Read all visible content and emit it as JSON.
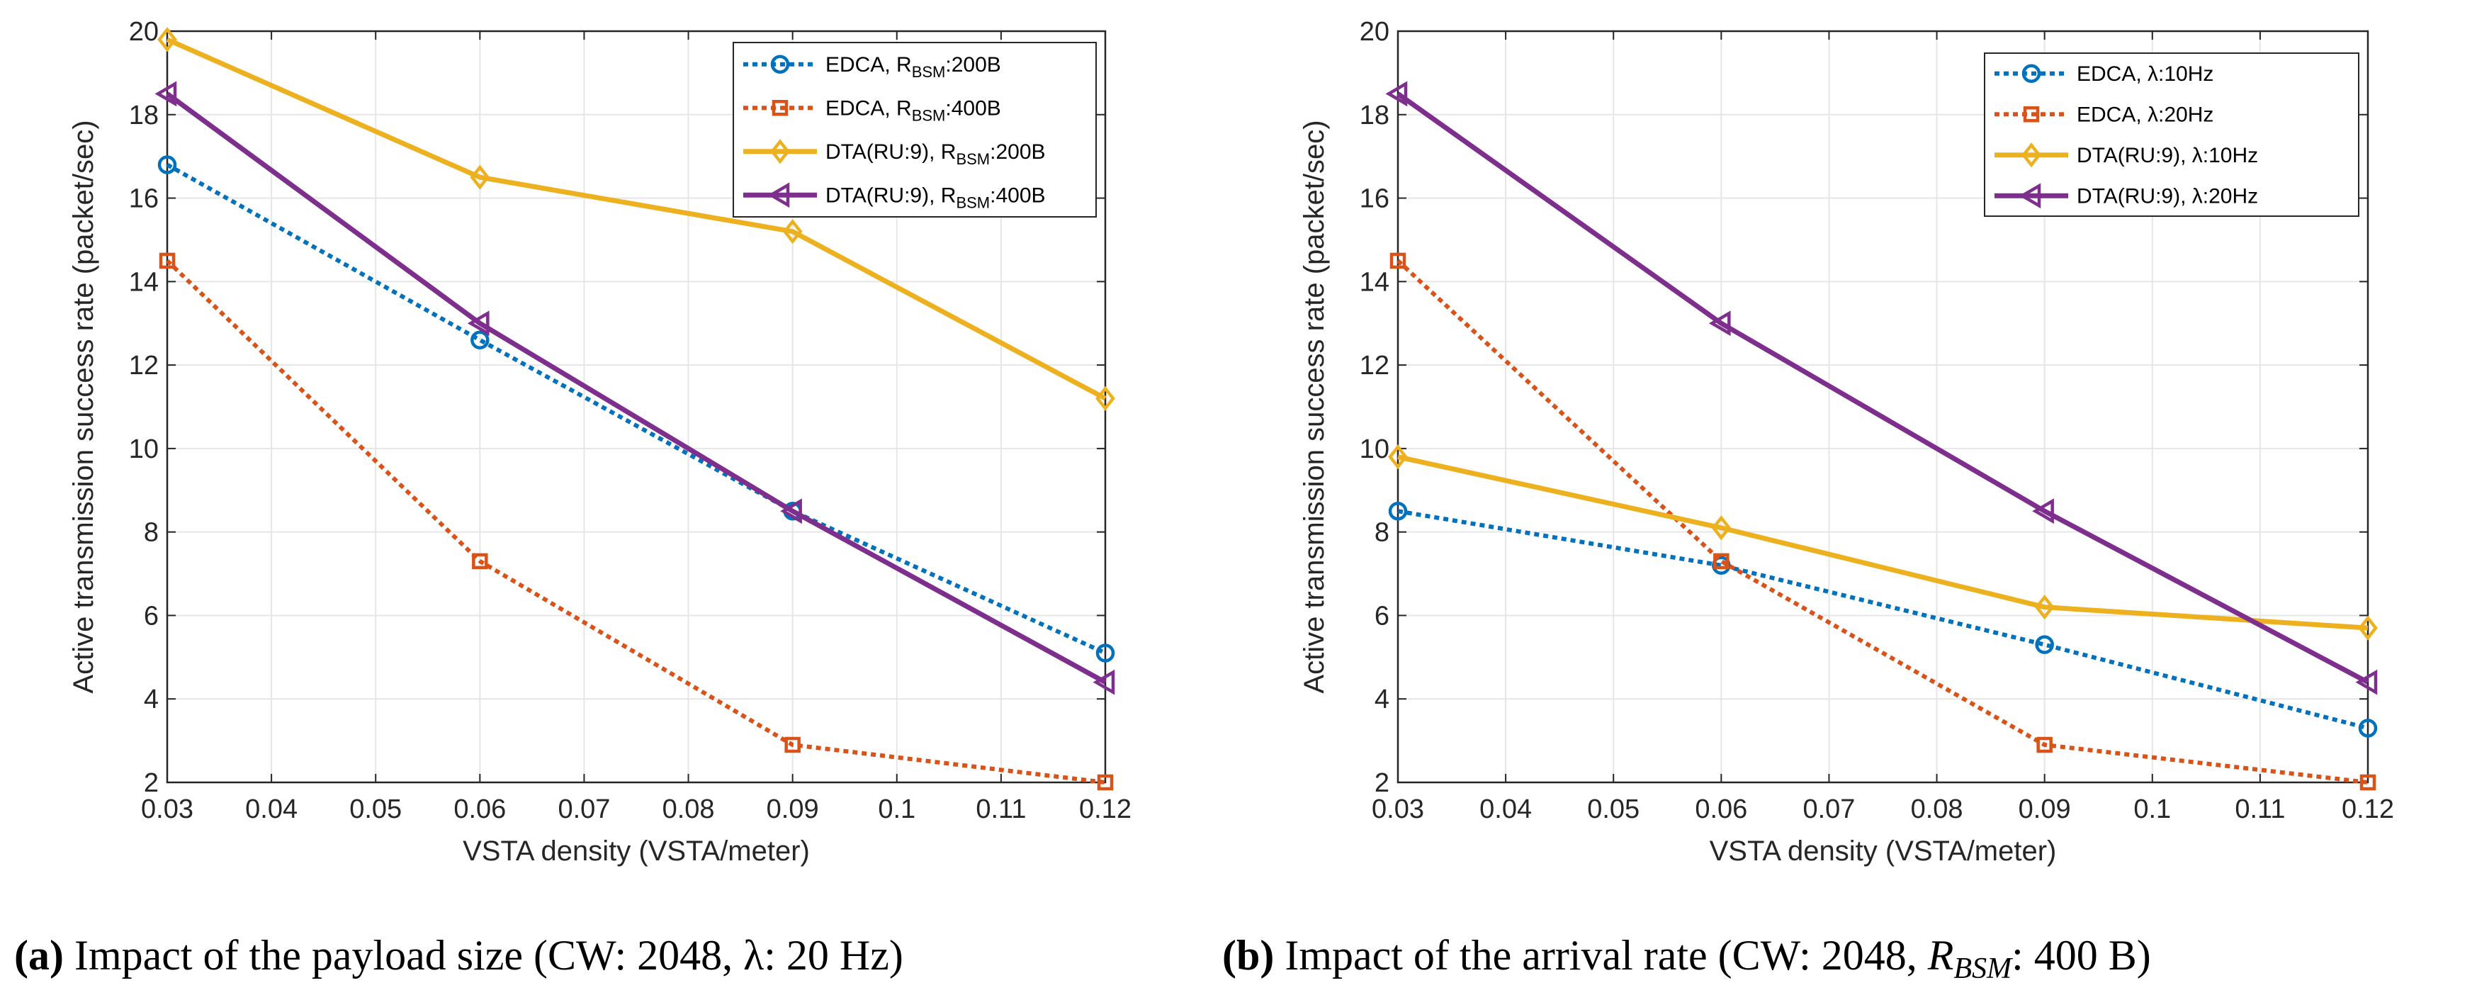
{
  "colors": {
    "edca_a": "#0072BD",
    "edca_b": "#D95319",
    "dta_a": "#EDB120",
    "dta_b": "#7E2F8E",
    "grid": "#e6e6e6",
    "axis": "#262626"
  },
  "chart_data": [
    {
      "type": "line",
      "xlabel": "VSTA density (VSTA/meter)",
      "ylabel": "Active transmission success rate (packet/sec)",
      "xlim": [
        0.03,
        0.12
      ],
      "ylim": [
        2,
        20
      ],
      "xticks": [
        "0.03",
        "0.04",
        "0.05",
        "0.06",
        "0.07",
        "0.08",
        "0.09",
        "0.1",
        "0.11",
        "0.12"
      ],
      "yticks": [
        "2",
        "4",
        "6",
        "8",
        "10",
        "12",
        "14",
        "16",
        "18",
        "20"
      ],
      "grid": true,
      "legend_position": "top-right",
      "x": [
        0.03,
        0.06,
        0.09,
        0.12
      ],
      "series": [
        {
          "name": "EDCA, R_BSM:200B",
          "legend": {
            "pre": "EDCA, R",
            "sub": "BSM",
            "post": ":200B"
          },
          "marker": "circle",
          "dashed": true,
          "color": "#0072BD",
          "values": [
            16.8,
            12.6,
            8.5,
            5.1
          ]
        },
        {
          "name": "EDCA, R_BSM:400B",
          "legend": {
            "pre": "EDCA, R",
            "sub": "BSM",
            "post": ":400B"
          },
          "marker": "square",
          "dashed": true,
          "color": "#D95319",
          "values": [
            14.5,
            7.3,
            2.9,
            2.0
          ]
        },
        {
          "name": "DTA(RU:9), R_BSM:200B",
          "legend": {
            "pre": "DTA(RU:9), R",
            "sub": "BSM",
            "post": ":200B"
          },
          "marker": "diamond",
          "dashed": false,
          "color": "#EDB120",
          "values": [
            19.8,
            16.5,
            15.2,
            11.2
          ]
        },
        {
          "name": "DTA(RU:9), R_BSM:400B",
          "legend": {
            "pre": "DTA(RU:9), R",
            "sub": "BSM",
            "post": ":400B"
          },
          "marker": "triangle-left",
          "dashed": false,
          "color": "#7E2F8E",
          "values": [
            18.5,
            13.0,
            8.5,
            4.4
          ]
        }
      ],
      "caption": {
        "label": "(a)",
        "text": " Impact of the payload size (CW: 2048, λ: 20 Hz)"
      }
    },
    {
      "type": "line",
      "xlabel": "VSTA density (VSTA/meter)",
      "ylabel": "Active transmission success rate (packet/sec)",
      "xlim": [
        0.03,
        0.12
      ],
      "ylim": [
        2,
        20
      ],
      "xticks": [
        "0.03",
        "0.04",
        "0.05",
        "0.06",
        "0.07",
        "0.08",
        "0.09",
        "0.1",
        "0.11",
        "0.12"
      ],
      "yticks": [
        "2",
        "4",
        "6",
        "8",
        "10",
        "12",
        "14",
        "16",
        "18",
        "20"
      ],
      "grid": true,
      "legend_position": "top-right",
      "x": [
        0.03,
        0.06,
        0.09,
        0.12
      ],
      "series": [
        {
          "name": "EDCA, λ:10Hz",
          "legend": {
            "pre": "EDCA, λ:10Hz",
            "sub": "",
            "post": ""
          },
          "marker": "circle",
          "dashed": true,
          "color": "#0072BD",
          "values": [
            8.5,
            7.2,
            5.3,
            3.3
          ]
        },
        {
          "name": "EDCA, λ:20Hz",
          "legend": {
            "pre": "EDCA, λ:20Hz",
            "sub": "",
            "post": ""
          },
          "marker": "square",
          "dashed": true,
          "color": "#D95319",
          "values": [
            14.5,
            7.3,
            2.9,
            2.0
          ]
        },
        {
          "name": "DTA(RU:9), λ:10Hz",
          "legend": {
            "pre": "DTA(RU:9), λ:10Hz",
            "sub": "",
            "post": ""
          },
          "marker": "diamond",
          "dashed": false,
          "color": "#EDB120",
          "values": [
            9.8,
            8.1,
            6.2,
            5.7
          ]
        },
        {
          "name": "DTA(RU:9), λ:20Hz",
          "legend": {
            "pre": "DTA(RU:9), λ:20Hz",
            "sub": "",
            "post": ""
          },
          "marker": "triangle-left",
          "dashed": false,
          "color": "#7E2F8E",
          "values": [
            18.5,
            13.0,
            8.5,
            4.4
          ]
        }
      ],
      "caption": {
        "label": "(b)",
        "text": " Impact of the arrival rate (CW: 2048, R_BSM: 400 B)",
        "pre": " Impact of the arrival rate (CW: 2048, ",
        "var": "R",
        "sub": "BSM",
        "post": ": 400 B)"
      }
    }
  ]
}
